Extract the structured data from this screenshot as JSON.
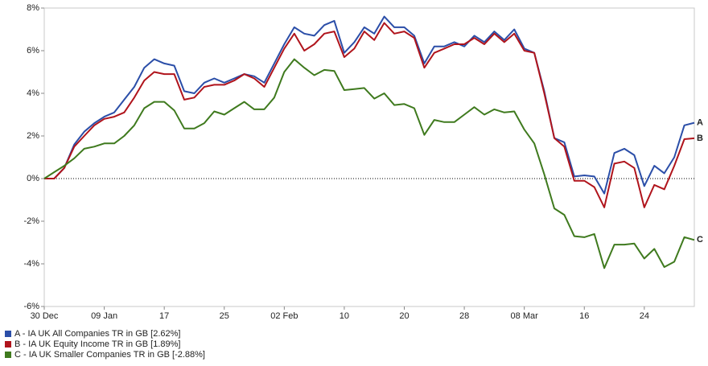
{
  "chart_data": {
    "type": "line",
    "categories": [
      "30 Dec",
      null,
      null,
      null,
      null,
      null,
      "09 Jan",
      null,
      null,
      null,
      null,
      null,
      "17",
      null,
      null,
      null,
      null,
      null,
      "25",
      null,
      null,
      null,
      null,
      null,
      "02 Feb",
      null,
      null,
      null,
      null,
      null,
      "10",
      null,
      null,
      null,
      null,
      null,
      "20",
      null,
      null,
      null,
      null,
      null,
      "28",
      null,
      null,
      null,
      null,
      null,
      "08 Mar",
      null,
      null,
      null,
      null,
      null,
      "16",
      null,
      null,
      null,
      null,
      null,
      "24",
      null,
      null,
      null,
      null,
      null
    ],
    "series": [
      {
        "name": "A - IA UK All Companies TR in GB [2.62%]",
        "end_label": "A",
        "color": "#2b4ea8",
        "values": [
          0,
          0,
          0.5,
          1.6,
          2.2,
          2.6,
          2.9,
          3.1,
          3.7,
          4.3,
          5.2,
          5.6,
          5.4,
          5.3,
          4.1,
          4.0,
          4.5,
          4.7,
          4.5,
          4.7,
          4.9,
          4.8,
          4.5,
          5.4,
          6.3,
          7.1,
          6.8,
          6.7,
          7.2,
          7.4,
          5.9,
          6.4,
          7.1,
          6.8,
          7.6,
          7.1,
          7.1,
          6.7,
          5.4,
          6.2,
          6.2,
          6.4,
          6.2,
          6.7,
          6.4,
          6.9,
          6.5,
          7.0,
          6.1,
          5.9,
          4.1,
          1.9,
          1.7,
          0.1,
          0.15,
          0.1,
          -0.7,
          1.2,
          1.4,
          1.1,
          -0.35,
          0.6,
          0.25,
          1.0,
          2.5,
          2.62
        ]
      },
      {
        "name": "B - IA UK Equity Income TR in GB [1.89%]",
        "end_label": "B",
        "color": "#b0141c",
        "values": [
          0,
          0,
          0.5,
          1.5,
          2.0,
          2.5,
          2.8,
          2.9,
          3.1,
          3.8,
          4.6,
          5.0,
          4.9,
          4.9,
          3.7,
          3.8,
          4.3,
          4.4,
          4.4,
          4.6,
          4.9,
          4.7,
          4.3,
          5.2,
          6.1,
          6.8,
          6.0,
          6.3,
          6.8,
          6.9,
          5.7,
          6.1,
          6.9,
          6.5,
          7.3,
          6.8,
          6.9,
          6.6,
          5.2,
          5.9,
          6.1,
          6.3,
          6.3,
          6.6,
          6.3,
          6.8,
          6.4,
          6.8,
          6.0,
          5.9,
          4.0,
          1.9,
          1.5,
          -0.1,
          -0.1,
          -0.4,
          -1.35,
          0.7,
          0.8,
          0.5,
          -1.35,
          -0.3,
          -0.5,
          0.6,
          1.85,
          1.89
        ]
      },
      {
        "name": "C - IA UK Smaller Companies TR in GB [-2.88%]",
        "end_label": "C",
        "color": "#3f7a1e",
        "values": [
          0,
          0.3,
          0.6,
          0.95,
          1.4,
          1.5,
          1.65,
          1.65,
          2.0,
          2.5,
          3.3,
          3.6,
          3.6,
          3.2,
          2.35,
          2.35,
          2.6,
          3.15,
          3.0,
          3.3,
          3.6,
          3.25,
          3.25,
          3.8,
          5.0,
          5.6,
          5.2,
          4.85,
          5.1,
          5.05,
          4.15,
          4.2,
          4.25,
          3.75,
          4.0,
          3.45,
          3.5,
          3.3,
          2.05,
          2.75,
          2.65,
          2.65,
          3.0,
          3.35,
          3.0,
          3.25,
          3.1,
          3.15,
          2.3,
          1.65,
          0.2,
          -1.4,
          -1.7,
          -2.7,
          -2.75,
          -2.6,
          -4.2,
          -3.1,
          -3.1,
          -3.05,
          -3.75,
          -3.3,
          -4.15,
          -3.9,
          -2.75,
          -2.88
        ]
      }
    ],
    "ylim": [
      -6,
      8
    ],
    "yticks": [
      {
        "value": -6,
        "label": "-6%"
      },
      {
        "value": -4,
        "label": "-4%"
      },
      {
        "value": -2,
        "label": "-2%"
      },
      {
        "value": 0,
        "label": "0%"
      },
      {
        "value": 2,
        "label": "2%"
      },
      {
        "value": 4,
        "label": "4%"
      },
      {
        "value": 6,
        "label": "6%"
      },
      {
        "value": 8,
        "label": "8%"
      }
    ],
    "zero_line": true,
    "legend": "bottom-left"
  }
}
